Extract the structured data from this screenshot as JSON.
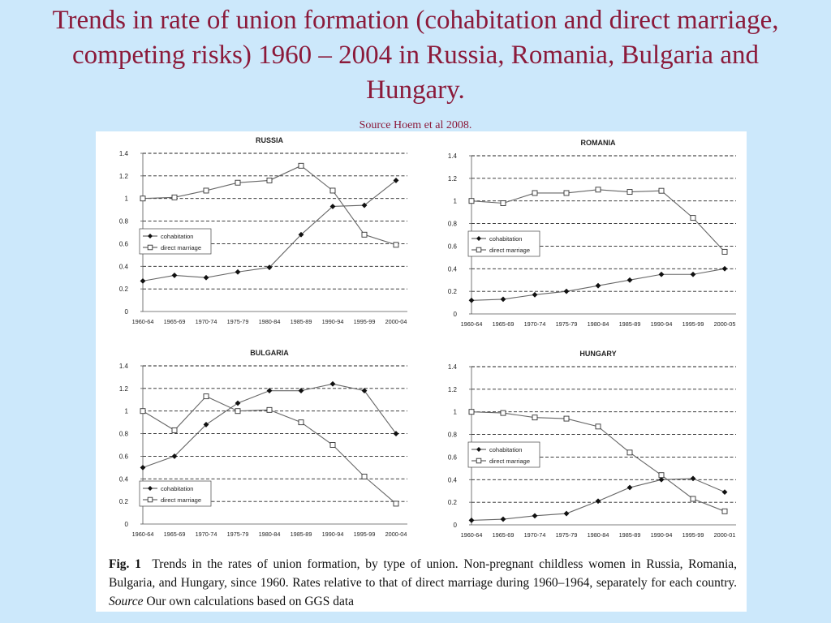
{
  "title": "Trends in rate of union formation (cohabitation and direct marriage, competing risks) 1960 – 2004 in Russia, Romania, Bulgaria and Hungary.",
  "source": "Source Hoem et al 2008.",
  "caption": {
    "label": "Fig. 1",
    "text": "Trends in the rates of union formation, by type of union. Non-pregnant childless women in Russia, Romania, Bulgaria, and Hungary, since 1960. Rates relative to that of direct marriage during 1960–1964, separately for each country.",
    "source_label": "Source",
    "source_text": "Our own calculations based on GGS data"
  },
  "chart_data": [
    {
      "type": "line",
      "title": "RUSSIA",
      "categories": [
        "1960-64",
        "1965-69",
        "1970-74",
        "1975-79",
        "1980-84",
        "1985-89",
        "1990-94",
        "1995-99",
        "2000-04"
      ],
      "series": [
        {
          "name": "cohabitation",
          "marker": "diamond-filled",
          "values": [
            0.27,
            0.32,
            0.3,
            0.35,
            0.39,
            0.68,
            0.93,
            0.94,
            1.16
          ]
        },
        {
          "name": "direct marriage",
          "marker": "square-open",
          "values": [
            1.0,
            1.01,
            1.07,
            1.14,
            1.16,
            1.29,
            1.07,
            0.68,
            0.59
          ]
        }
      ],
      "yticks": [
        "0",
        "0.2",
        "0.4",
        "0.6",
        "0.8",
        "1",
        "1.2",
        "1.4"
      ],
      "ylim": [
        0,
        1.4
      ],
      "grid": "horizontal dashed",
      "legend": "left-middle"
    },
    {
      "type": "line",
      "title": "ROMANIA",
      "categories": [
        "1960-64",
        "1965-69",
        "1970-74",
        "1975-79",
        "1980-84",
        "1985-89",
        "1990-94",
        "1995-99",
        "2000-05"
      ],
      "series": [
        {
          "name": "cohabitation",
          "marker": "diamond-filled",
          "values": [
            0.12,
            0.13,
            0.17,
            0.2,
            0.25,
            0.3,
            0.35,
            0.35,
            0.4
          ]
        },
        {
          "name": "direct marriage",
          "marker": "square-open",
          "values": [
            1.0,
            0.98,
            1.07,
            1.07,
            1.1,
            1.08,
            1.09,
            0.85,
            0.55
          ]
        }
      ],
      "yticks": [
        "0",
        "0.2",
        "0.4",
        "0.6",
        "0.8",
        "1",
        "1.2",
        "1.4"
      ],
      "ylim": [
        0,
        1.4
      ],
      "grid": "horizontal dashed",
      "legend": "left-middle"
    },
    {
      "type": "line",
      "title": "BULGARIA",
      "categories": [
        "1960-64",
        "1965-69",
        "1970-74",
        "1975-79",
        "1980-84",
        "1985-89",
        "1990-94",
        "1995-99",
        "2000-04"
      ],
      "series": [
        {
          "name": "cohabitation",
          "marker": "diamond-filled",
          "values": [
            0.5,
            0.6,
            0.88,
            1.07,
            1.18,
            1.18,
            1.24,
            1.18,
            0.8
          ]
        },
        {
          "name": "direct marriage",
          "marker": "square-open",
          "values": [
            1.0,
            0.83,
            1.13,
            1.0,
            1.01,
            0.9,
            0.7,
            0.42,
            0.18
          ]
        }
      ],
      "yticks": [
        "0",
        "0.2",
        "0.4",
        "0.6",
        "0.8",
        "1",
        "1.2",
        "1.4"
      ],
      "ylim": [
        0,
        1.4
      ],
      "grid": "horizontal dashed",
      "legend": "bottom-left"
    },
    {
      "type": "line",
      "title": "HUNGARY",
      "categories": [
        "1960-64",
        "1965-69",
        "1970-74",
        "1975-79",
        "1980-84",
        "1985-89",
        "1990-94",
        "1995-99",
        "2000-01"
      ],
      "series": [
        {
          "name": "cohabitation",
          "marker": "diamond-filled",
          "values": [
            0.04,
            0.05,
            0.08,
            0.1,
            0.21,
            0.33,
            0.4,
            0.41,
            0.29
          ]
        },
        {
          "name": "direct marriage",
          "marker": "square-open",
          "values": [
            1.0,
            0.99,
            0.95,
            0.94,
            0.87,
            0.64,
            0.44,
            0.23,
            0.12
          ]
        }
      ],
      "yticks": [
        "0",
        "0.2",
        "0.4",
        "0.6",
        "0.8",
        "1",
        "1.2",
        "1.4"
      ],
      "ylim": [
        0,
        1.4
      ],
      "grid": "horizontal dashed",
      "legend": "left-middle"
    }
  ]
}
